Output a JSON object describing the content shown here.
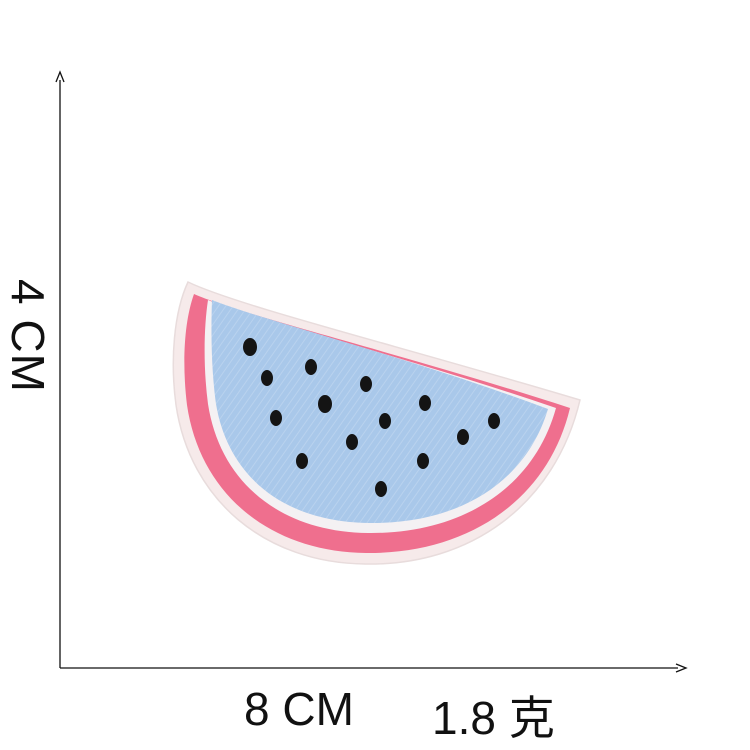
{
  "labels": {
    "height": "4 CM",
    "width": "8 CM",
    "weight": "1.8 克"
  },
  "colors": {
    "axis": "#111111",
    "flesh": "#a9c8ea",
    "rind": "#ef6f8e",
    "border": "#f6eaea",
    "seed": "#141414"
  }
}
